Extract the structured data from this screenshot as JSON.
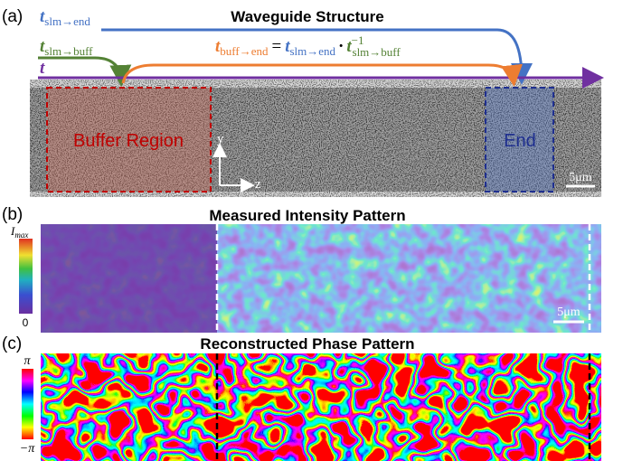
{
  "panel_a": {
    "label": "(a)",
    "title": "Waveguide Structure",
    "paths": [
      {
        "symbol": "t",
        "subscript": "slm→end"
      },
      {
        "symbol": "t",
        "subscript": "slm→buff"
      },
      {
        "symbol": "t"
      }
    ],
    "equation": {
      "lhs_symbol": "t",
      "lhs_subscript": "buff→end",
      "equals": "=",
      "r1_symbol": "t",
      "r1_subscript": "slm→end",
      "dot": "·",
      "r2_symbol": "t",
      "r2_superscript": "−1",
      "r2_subscript": "slm→buff"
    },
    "regions": [
      "Buffer Region",
      "End"
    ],
    "axes": [
      "y",
      "z"
    ],
    "scale_bar": "5μm"
  },
  "panel_b": {
    "label": "(b)",
    "title": "Measured Intensity Pattern",
    "colorbar_max_symbol": "I",
    "colorbar_max_subscript": "max",
    "colorbar_min": "0",
    "scale_bar": "5μm"
  },
  "panel_c": {
    "label": "(c)",
    "title": "Reconstructed Phase Pattern",
    "colorbar_max": "π",
    "colorbar_min": "−π"
  }
}
